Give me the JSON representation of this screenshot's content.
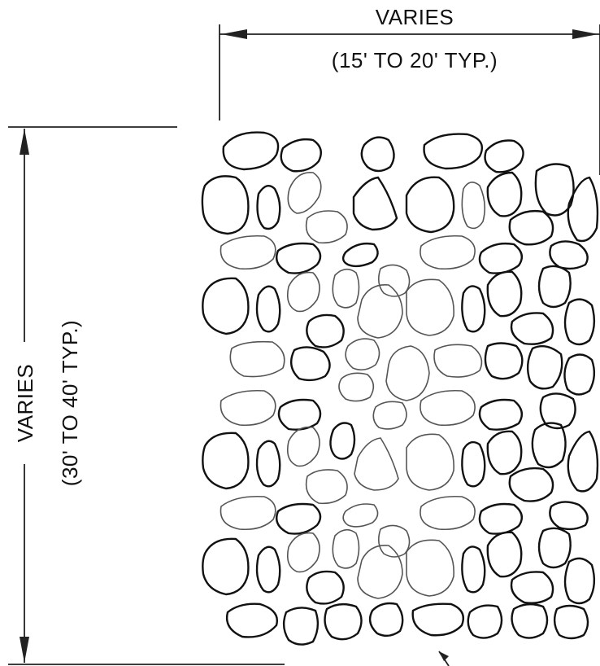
{
  "drawing": {
    "horizontal_dimension": {
      "label": "VARIES",
      "sublabel": "(15' TO 20' TYP.)"
    },
    "vertical_dimension": {
      "label": "VARIES",
      "sublabel": "(30' TO 40' TYP.)"
    }
  }
}
